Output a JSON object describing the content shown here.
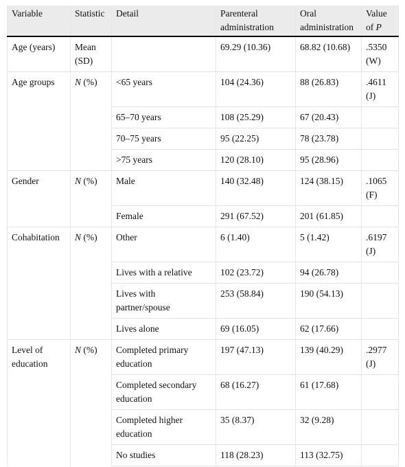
{
  "table": {
    "header": [
      "Variable",
      "Statistic",
      "Detail",
      "Parenteral administration",
      "Oral administration",
      {
        "text": "Value of",
        "italic": "P"
      }
    ],
    "groups": [
      {
        "variable": "Age (years)",
        "statistic": {
          "text": "Mean (SD)"
        },
        "rows": [
          {
            "parenteral": "69.29 (10.36)",
            "oral": "68.82 (10.68)",
            "p": ".5350 (W)"
          }
        ]
      },
      {
        "variable": "Age groups",
        "statistic": {
          "italic": "N",
          "text": "(%)"
        },
        "rows": [
          {
            "detail": "<65 years",
            "parenteral": "104 (24.36)",
            "oral": "88 (26.83)",
            "p": ".4611 (J)"
          },
          {
            "detail": "65–70 years",
            "parenteral": "108 (25.29)",
            "oral": "67 (20.43)"
          },
          {
            "detail": "70–75 years",
            "parenteral": "95 (22.25)",
            "oral": "78 (23.78)"
          },
          {
            "detail": ">75 years",
            "parenteral": "120 (28.10)",
            "oral": "95 (28.96)"
          }
        ]
      },
      {
        "variable": "Gender",
        "statistic": {
          "italic": "N",
          "text": "(%)"
        },
        "rows": [
          {
            "detail": "Male",
            "parenteral": "140 (32.48)",
            "oral": "124 (38.15)",
            "p": ".1065 (F)"
          },
          {
            "detail": "Female",
            "parenteral": "291 (67.52)",
            "oral": "201 (61.85)"
          }
        ]
      },
      {
        "variable": "Cohabitation",
        "statistic": {
          "italic": "N",
          "text": "(%)"
        },
        "rows": [
          {
            "detail": "Other",
            "parenteral": "6 (1.40)",
            "oral": "5 (1.42)",
            "p": ".6197 (J)"
          },
          {
            "detail": "Lives with a relative",
            "parenteral": "102 (23.72)",
            "oral": "94 (26.78)"
          },
          {
            "detail": "Lives with partner/spouse",
            "parenteral": "253 (58.84)",
            "oral": "190 (54.13)"
          },
          {
            "detail": "Lives alone",
            "parenteral": "69 (16.05)",
            "oral": "62 (17.66)"
          }
        ]
      },
      {
        "variable": "Level of education",
        "statistic": {
          "italic": "N",
          "text": "(%)"
        },
        "rows": [
          {
            "detail": "Completed primary education",
            "parenteral": "197 (47.13)",
            "oral": "139 (40.29)",
            "p": ".2977 (J)"
          },
          {
            "detail": "Completed secondary education",
            "parenteral": "68 (16.27)",
            "oral": "61 (17.68)"
          },
          {
            "detail": "Completed higher education",
            "parenteral": "35 (8.37)",
            "oral": "32 (9.28)"
          },
          {
            "detail": "No studies",
            "parenteral": "118 (28.23)",
            "oral": "113 (32.75)"
          }
        ]
      }
    ]
  }
}
